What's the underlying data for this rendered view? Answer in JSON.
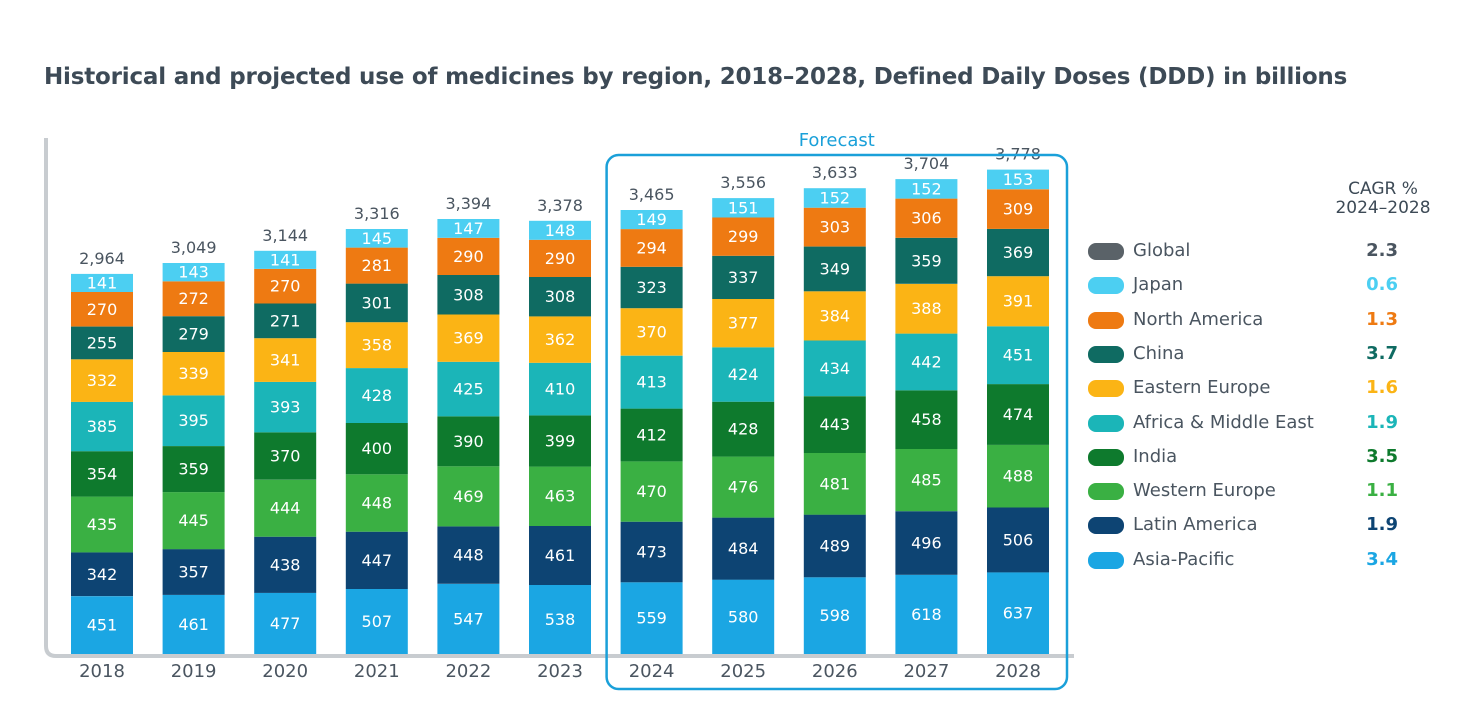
{
  "chart_data": {
    "type": "bar",
    "stacked": true,
    "title": "Historical and projected use of medicines by region, 2018–2028, Defined Daily Doses (DDD) in billions",
    "forecast_label": "Forecast",
    "forecast_start": "2024",
    "categories": [
      "2018",
      "2019",
      "2020",
      "2021",
      "2022",
      "2023",
      "2024",
      "2025",
      "2026",
      "2027",
      "2028"
    ],
    "totals": [
      "2,964",
      "3,049",
      "3,144",
      "3,316",
      "3,394",
      "3,378",
      "3,465",
      "3,556",
      "3,633",
      "3,704",
      "3,778"
    ],
    "series": [
      {
        "name": "Asia-Pacific",
        "color": "#1ba6e3",
        "values": [
          451,
          461,
          477,
          507,
          547,
          538,
          559,
          580,
          598,
          618,
          637
        ]
      },
      {
        "name": "Latin America",
        "color": "#0d4473",
        "values": [
          342,
          357,
          438,
          447,
          448,
          461,
          473,
          484,
          489,
          496,
          506
        ]
      },
      {
        "name": "Western Europe",
        "color": "#3ab043",
        "values": [
          435,
          445,
          444,
          448,
          469,
          463,
          470,
          476,
          481,
          485,
          488
        ]
      },
      {
        "name": "India",
        "color": "#0e7a2d",
        "values": [
          354,
          359,
          370,
          400,
          390,
          399,
          412,
          428,
          443,
          458,
          474
        ]
      },
      {
        "name": "Africa & Middle East",
        "color": "#1bb5b8",
        "values": [
          385,
          395,
          393,
          428,
          425,
          410,
          413,
          424,
          434,
          442,
          451
        ]
      },
      {
        "name": "Eastern Europe",
        "color": "#fbb415",
        "values": [
          332,
          339,
          341,
          358,
          369,
          362,
          370,
          377,
          384,
          388,
          391
        ]
      },
      {
        "name": "China",
        "color": "#0f6b62",
        "values": [
          255,
          279,
          271,
          301,
          308,
          308,
          323,
          337,
          349,
          359,
          369
        ]
      },
      {
        "name": "North America",
        "color": "#ee7a12",
        "values": [
          270,
          272,
          270,
          281,
          290,
          290,
          294,
          299,
          303,
          306,
          309
        ]
      },
      {
        "name": "Japan",
        "color": "#4ccff2",
        "values": [
          141,
          143,
          141,
          145,
          147,
          148,
          149,
          151,
          152,
          152,
          153
        ]
      }
    ],
    "ylim": [
      0,
      3900
    ],
    "legend": {
      "header": [
        "CAGR %",
        "2024–2028"
      ],
      "items": [
        {
          "name": "Global",
          "swatch": "#5a6268",
          "cagr": "2.3",
          "cagr_color": "#4a5560"
        },
        {
          "name": "Japan",
          "swatch": "#4ccff2",
          "cagr": "0.6",
          "cagr_color": "#4ccff2"
        },
        {
          "name": "North America",
          "swatch": "#ee7a12",
          "cagr": "1.3",
          "cagr_color": "#ee7a12"
        },
        {
          "name": "China",
          "swatch": "#0f6b62",
          "cagr": "3.7",
          "cagr_color": "#0f6b62"
        },
        {
          "name": "Eastern Europe",
          "swatch": "#fbb415",
          "cagr": "1.6",
          "cagr_color": "#fbb415"
        },
        {
          "name": "Africa & Middle East",
          "swatch": "#1bb5b8",
          "cagr": "1.9",
          "cagr_color": "#1bb5b8"
        },
        {
          "name": "India",
          "swatch": "#0e7a2d",
          "cagr": "3.5",
          "cagr_color": "#0e7a2d"
        },
        {
          "name": "Western Europe",
          "swatch": "#3ab043",
          "cagr": "1.1",
          "cagr_color": "#3ab043"
        },
        {
          "name": "Latin America",
          "swatch": "#0d4473",
          "cagr": "1.9",
          "cagr_color": "#0d4473"
        },
        {
          "name": "Asia-Pacific",
          "swatch": "#1ba6e3",
          "cagr": "3.4",
          "cagr_color": "#1ba6e3"
        }
      ]
    }
  }
}
